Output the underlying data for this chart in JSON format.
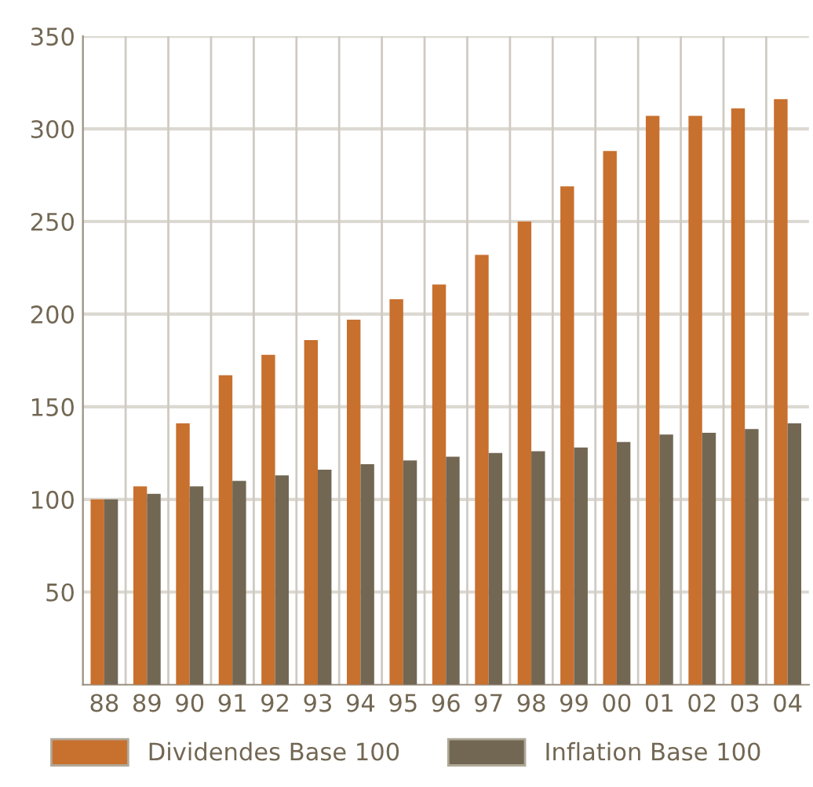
{
  "chart_data": {
    "type": "bar",
    "categories": [
      "88",
      "89",
      "90",
      "91",
      "92",
      "93",
      "94",
      "95",
      "96",
      "97",
      "98",
      "99",
      "00",
      "01",
      "02",
      "03",
      "04"
    ],
    "series": [
      {
        "name": "Dividendes Base 100",
        "color": "#c8702e",
        "values": [
          100,
          107,
          141,
          167,
          178,
          186,
          197,
          208,
          216,
          232,
          250,
          269,
          288,
          307,
          307,
          311,
          316
        ]
      },
      {
        "name": "Inflation Base 100",
        "color": "#726753",
        "values": [
          100,
          103,
          107,
          110,
          113,
          116,
          119,
          121,
          123,
          125,
          126,
          128,
          131,
          135,
          136,
          138,
          141
        ]
      }
    ],
    "ylim": [
      0,
      350
    ],
    "yticks": [
      50,
      100,
      150,
      200,
      250,
      300,
      350
    ],
    "grid": true,
    "legend": "bottom"
  }
}
